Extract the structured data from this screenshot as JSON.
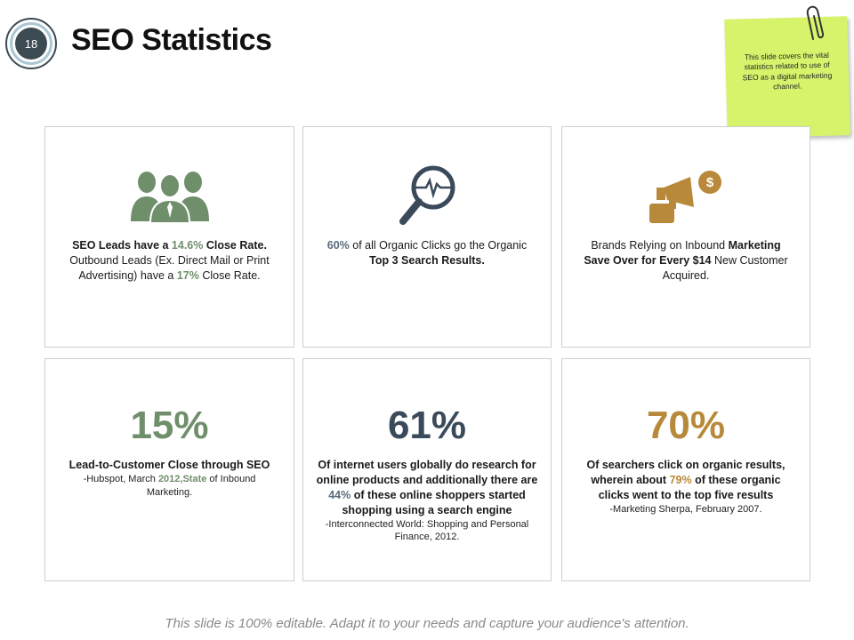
{
  "slide": {
    "number": "18",
    "title": "SEO Statistics",
    "note": "This slide covers the vital statistics related to use of SEO as a digital marketing channel.",
    "footer": "This slide is 100% editable. Adapt it to your needs and capture your audience's attention."
  },
  "colors": {
    "green": "#6f8f6b",
    "navy": "#3b4a5a",
    "gold": "#b8893a",
    "sticky": "#d7f36c"
  },
  "cards": {
    "c1": {
      "icon": "group-people-icon",
      "t1": "SEO Leads have a ",
      "v1": "14.6%",
      "t2": " Close Rate.",
      "t3": " Outbound Leads (Ex. Direct Mail or Print Advertising) have a ",
      "v2": "17%",
      "t4": " Close Rate."
    },
    "c2": {
      "icon": "search-magnifier-icon",
      "v1": "60%",
      "t1": " of all Organic Clicks go the Organic ",
      "t2": "Top 3 Search Results."
    },
    "c3": {
      "icon": "megaphone-dollar-icon",
      "t1": "Brands Relying on Inbound ",
      "t2": "Marketing Save Over for Every $14",
      "t3": " New Customer Acquired."
    },
    "c4": {
      "stat": "15%",
      "head": "Lead-to-Customer Close through SEO",
      "s1": "-Hubspot, March ",
      "s2": "2012,State",
      "s3": " of Inbound Marketing."
    },
    "c5": {
      "stat": "61%",
      "h1": "Of internet users globally do research for online products and additionally there are ",
      "h2": "44%",
      "h3": " of these online shoppers started shopping using a search engine",
      "src": "-Interconnected World: Shopping and Personal Finance, 2012."
    },
    "c6": {
      "stat": "70%",
      "h1": "Of searchers click on organic results, wherein about ",
      "h2": "79%",
      "h3": " of these organic clicks went to the top five results",
      "src": "-Marketing Sherpa, February 2007."
    }
  }
}
